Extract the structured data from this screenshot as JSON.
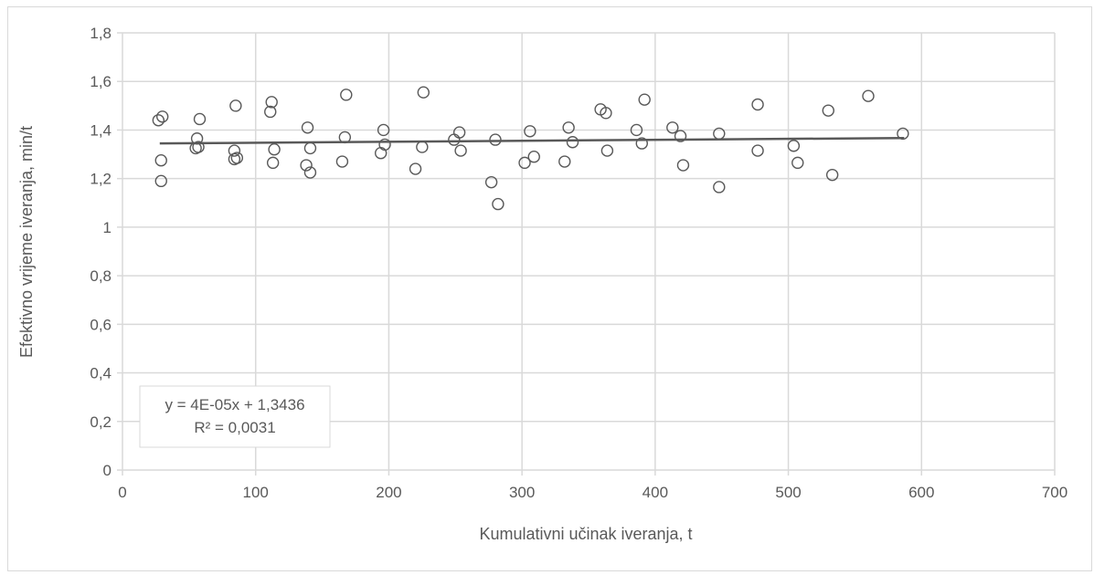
{
  "chart_data": {
    "type": "scatter",
    "title": "",
    "xlabel": "Kumulativni učinak iveranja, t",
    "ylabel": "Efektivno vrijeme iveranja, min/t",
    "xlim": [
      0,
      700
    ],
    "ylim": [
      0,
      1.8
    ],
    "x_ticks": [
      "0",
      "100",
      "200",
      "300",
      "400",
      "500",
      "600",
      "700"
    ],
    "y_ticks": [
      "0",
      "0,2",
      "0,4",
      "0,6",
      "0,8",
      "1",
      "1,2",
      "1,4",
      "1,6",
      "1,8"
    ],
    "grid": true,
    "marker": "hollow-circle",
    "colors": {
      "marker": "#595959",
      "trendline": "#595959",
      "grid": "#d9d9d9"
    },
    "trendline": {
      "type": "linear",
      "slope": 4e-05,
      "intercept": 1.3436,
      "x_range": [
        28,
        587
      ],
      "equation_label": "y = 4E-05x + 1,3436",
      "r2_label": "R² = 0,0031"
    },
    "points": [
      {
        "x": 27,
        "y": 1.44
      },
      {
        "x": 30,
        "y": 1.455
      },
      {
        "x": 29,
        "y": 1.275
      },
      {
        "x": 29,
        "y": 1.19
      },
      {
        "x": 56,
        "y": 1.365
      },
      {
        "x": 55,
        "y": 1.325
      },
      {
        "x": 57,
        "y": 1.33
      },
      {
        "x": 58,
        "y": 1.445
      },
      {
        "x": 84,
        "y": 1.315
      },
      {
        "x": 84,
        "y": 1.28
      },
      {
        "x": 86,
        "y": 1.285
      },
      {
        "x": 85,
        "y": 1.5
      },
      {
        "x": 111,
        "y": 1.475
      },
      {
        "x": 112,
        "y": 1.515
      },
      {
        "x": 114,
        "y": 1.32
      },
      {
        "x": 113,
        "y": 1.265
      },
      {
        "x": 139,
        "y": 1.41
      },
      {
        "x": 141,
        "y": 1.325
      },
      {
        "x": 138,
        "y": 1.255
      },
      {
        "x": 141,
        "y": 1.225
      },
      {
        "x": 168,
        "y": 1.545
      },
      {
        "x": 167,
        "y": 1.37
      },
      {
        "x": 165,
        "y": 1.27
      },
      {
        "x": 196,
        "y": 1.4
      },
      {
        "x": 197,
        "y": 1.34
      },
      {
        "x": 194,
        "y": 1.305
      },
      {
        "x": 226,
        "y": 1.555
      },
      {
        "x": 225,
        "y": 1.33
      },
      {
        "x": 220,
        "y": 1.24
      },
      {
        "x": 249,
        "y": 1.36
      },
      {
        "x": 253,
        "y": 1.39
      },
      {
        "x": 254,
        "y": 1.315
      },
      {
        "x": 280,
        "y": 1.36
      },
      {
        "x": 277,
        "y": 1.185
      },
      {
        "x": 282,
        "y": 1.095
      },
      {
        "x": 306,
        "y": 1.395
      },
      {
        "x": 309,
        "y": 1.29
      },
      {
        "x": 302,
        "y": 1.265
      },
      {
        "x": 335,
        "y": 1.41
      },
      {
        "x": 338,
        "y": 1.35
      },
      {
        "x": 332,
        "y": 1.27
      },
      {
        "x": 359,
        "y": 1.485
      },
      {
        "x": 363,
        "y": 1.47
      },
      {
        "x": 364,
        "y": 1.315
      },
      {
        "x": 392,
        "y": 1.525
      },
      {
        "x": 386,
        "y": 1.4
      },
      {
        "x": 390,
        "y": 1.345
      },
      {
        "x": 413,
        "y": 1.41
      },
      {
        "x": 419,
        "y": 1.375
      },
      {
        "x": 421,
        "y": 1.255
      },
      {
        "x": 448,
        "y": 1.385
      },
      {
        "x": 448,
        "y": 1.165
      },
      {
        "x": 477,
        "y": 1.505
      },
      {
        "x": 477,
        "y": 1.315
      },
      {
        "x": 504,
        "y": 1.335
      },
      {
        "x": 507,
        "y": 1.265
      },
      {
        "x": 530,
        "y": 1.48
      },
      {
        "x": 533,
        "y": 1.215
      },
      {
        "x": 560,
        "y": 1.54
      },
      {
        "x": 586,
        "y": 1.385
      }
    ]
  }
}
